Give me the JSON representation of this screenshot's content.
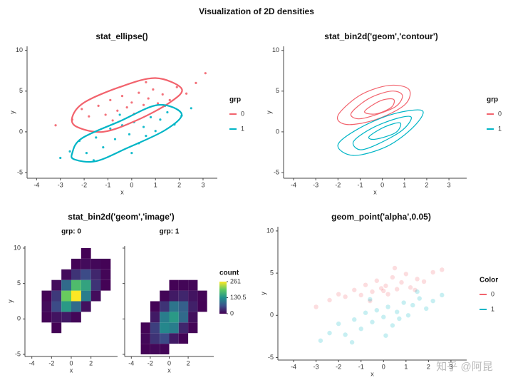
{
  "title": "Visualization of 2D densities",
  "watermark": "知乎 @阿昆",
  "chart_data": [
    {
      "type": "scatter",
      "title": "stat_ellipse()",
      "xlabel": "x",
      "ylabel": "y",
      "xlim": [
        -4.4,
        3.6
      ],
      "ylim": [
        -5.7,
        10.5
      ],
      "xticks": [
        -4,
        -3,
        -2,
        -1,
        0,
        1,
        2,
        3
      ],
      "yticks": [
        -5,
        0,
        5,
        10
      ],
      "legend_title": "grp",
      "series": [
        {
          "name": "0",
          "color": "#f2636d",
          "x": [
            -3.2,
            -2.5,
            -2.1,
            -1.8,
            -1.4,
            -1.1,
            -0.9,
            -0.6,
            -0.4,
            -0.2,
            0,
            0.1,
            0.3,
            0.5,
            0.7,
            0.9,
            1.1,
            1.3,
            1.6,
            1.9,
            2.3,
            2.7,
            3.1,
            -0.8,
            0.6
          ],
          "y": [
            0.8,
            1.5,
            2.8,
            1.9,
            3.2,
            2.1,
            3.9,
            2.6,
            4.4,
            3.0,
            3.6,
            2.2,
            4.8,
            3.3,
            4.1,
            5.2,
            3.5,
            4.6,
            3.9,
            5.5,
            4.7,
            6.0,
            7.2,
            1.4,
            6.1
          ],
          "ellipse": {
            "x": [
              -2.5,
              -2.0,
              -0.5,
              1.0,
              2.1,
              1.6,
              0.2,
              -1.2,
              -2.3
            ],
            "y": [
              1.8,
              3.6,
              5.5,
              6.6,
              5.3,
              3.6,
              1.4,
              0.0,
              0.6
            ]
          }
        },
        {
          "name": "1",
          "color": "#00b5c6",
          "x": [
            -3.0,
            -2.6,
            -2.2,
            -1.9,
            -1.5,
            -1.2,
            -0.9,
            -0.7,
            -0.4,
            -0.1,
            0.1,
            0.3,
            0.5,
            0.8,
            1.0,
            1.2,
            1.5,
            1.8,
            2.1,
            2.5,
            -1.6,
            0.0,
            0.6,
            -0.5,
            1.4
          ],
          "y": [
            -3.2,
            -2.4,
            -1.1,
            -2.6,
            -0.7,
            -1.9,
            0.4,
            -0.9,
            0.8,
            -0.3,
            1.2,
            -1.4,
            0.6,
            1.8,
            0.1,
            1.5,
            2.4,
            0.9,
            2.0,
            2.9,
            -3.5,
            -2.6,
            -0.5,
            2.1,
            3.2
          ],
          "ellipse": {
            "x": [
              -2.5,
              -2.1,
              -0.5,
              1.1,
              2.1,
              1.4,
              -0.2,
              -1.5,
              -2.4
            ],
            "y": [
              -2.6,
              -0.8,
              1.3,
              3.3,
              2.2,
              0.2,
              -2.0,
              -3.6,
              -3.4
            ]
          }
        }
      ]
    },
    {
      "type": "contour",
      "title": "stat_bin2d('geom','contour')",
      "xlabel": "x",
      "ylabel": "y",
      "xlim": [
        -4.45,
        3.8
      ],
      "ylim": [
        -5.7,
        10.5
      ],
      "xticks": [
        -4,
        -3,
        -2,
        -1,
        0,
        1,
        2,
        3
      ],
      "yticks": [
        -5,
        0,
        5,
        10
      ],
      "legend_title": "grp",
      "series": [
        {
          "name": "0",
          "color": "#f2636d",
          "contours": [
            {
              "x": [
                -2.0,
                -1.0,
                0.3,
                1.2,
                1.0,
                -0.3,
                -1.6
              ],
              "y": [
                2.0,
                4.5,
                5.7,
                5.2,
                3.3,
                1.5,
                0.9
              ]
            },
            {
              "x": [
                -1.4,
                -0.6,
                0.4,
                0.9,
                0.6,
                -0.4,
                -1.1
              ],
              "y": [
                2.3,
                4.1,
                5.0,
                4.5,
                3.1,
                2.0,
                1.6
              ]
            },
            {
              "x": [
                -0.8,
                -0.1,
                0.5,
                0.4,
                -0.3
              ],
              "y": [
                2.5,
                3.8,
                4.0,
                3.0,
                2.2
              ]
            }
          ]
        },
        {
          "name": "1",
          "color": "#00b5c6",
          "contours": [
            {
              "x": [
                -2.0,
                -1.0,
                0.5,
                1.8,
                1.4,
                0.2,
                -1.3
              ],
              "y": [
                -1.6,
                0.5,
                2.2,
                2.6,
                0.6,
                -1.8,
                -2.9
              ]
            },
            {
              "x": [
                -1.3,
                -0.5,
                0.6,
                1.3,
                0.9,
                -0.2,
                -1.0
              ],
              "y": [
                -1.2,
                0.4,
                1.6,
                1.8,
                0.2,
                -1.5,
                -2.2
              ]
            },
            {
              "x": [
                -0.6,
                0.1,
                0.8,
                0.6,
                -0.3
              ],
              "y": [
                -0.6,
                0.6,
                1.1,
                -0.1,
                -0.9
              ]
            }
          ]
        }
      ]
    },
    {
      "type": "heatmap",
      "title": "stat_bin2d('geom','image')",
      "xlabel": "x",
      "ylabel": "y",
      "xlim": [
        -4.7,
        4.7
      ],
      "ylim": [
        -5.3,
        10.3
      ],
      "xticks": [
        -4,
        -2,
        0,
        2
      ],
      "yticks": [
        -5,
        0,
        5,
        10
      ],
      "xbins": [
        -3,
        -2,
        -1,
        0,
        1,
        2,
        3,
        4
      ],
      "ybins": [
        -5,
        -3.5,
        -2,
        -0.5,
        1,
        2.5,
        4,
        5.5,
        7,
        8.5,
        10
      ],
      "colorbar": {
        "title": "count",
        "lim": [
          0,
          261
        ],
        "ticks": [
          0,
          130.5,
          261
        ]
      },
      "facets": [
        {
          "title": "grp: 0",
          "counts": [
            [
              null,
              null,
              null,
              null,
              null,
              null,
              null
            ],
            [
              null,
              null,
              null,
              null,
              null,
              null,
              null
            ],
            [
              null,
              2,
              null,
              null,
              null,
              null,
              null
            ],
            [
              3,
              15,
              20,
              5,
              null,
              null,
              null
            ],
            [
              8,
              60,
              140,
              90,
              12,
              null,
              null
            ],
            [
              2,
              45,
              200,
              261,
              110,
              10,
              null
            ],
            [
              null,
              10,
              90,
              180,
              150,
              40,
              2
            ],
            [
              null,
              null,
              8,
              40,
              60,
              30,
              4
            ],
            [
              null,
              null,
              null,
              3,
              8,
              6,
              2
            ],
            [
              null,
              null,
              null,
              null,
              1,
              null,
              null
            ]
          ]
        },
        {
          "title": "grp: 1",
          "counts": [
            [
              2,
              6,
              4,
              null,
              null,
              null,
              null
            ],
            [
              6,
              40,
              60,
              20,
              2,
              null,
              null
            ],
            [
              3,
              50,
              120,
              110,
              30,
              3,
              null
            ],
            [
              null,
              20,
              110,
              140,
              90,
              12,
              null
            ],
            [
              null,
              3,
              40,
              100,
              80,
              25,
              2
            ],
            [
              null,
              null,
              4,
              20,
              30,
              15,
              3
            ],
            [
              null,
              null,
              null,
              2,
              4,
              5,
              null
            ],
            [
              null,
              null,
              null,
              null,
              null,
              null,
              null
            ],
            [
              null,
              null,
              null,
              null,
              null,
              null,
              null
            ],
            [
              null,
              null,
              null,
              null,
              null,
              null,
              null
            ]
          ]
        }
      ]
    },
    {
      "type": "scatter",
      "title": "geom_point('alpha',0.05)",
      "xlabel": "x",
      "ylabel": "y",
      "xlim": [
        -4.7,
        3.7
      ],
      "ylim": [
        -5.3,
        10.5
      ],
      "xticks": [
        -4,
        -3,
        -2,
        -1,
        0,
        1,
        2,
        3
      ],
      "yticks": [
        -5,
        0,
        5,
        10
      ],
      "legend_title": "Color",
      "series": [
        {
          "name": "0",
          "color": "#f2636d",
          "x": [
            -3.0,
            -2.4,
            -2.0,
            -1.7,
            -1.3,
            -1.0,
            -0.8,
            -0.5,
            -0.3,
            -0.1,
            0.1,
            0.2,
            0.4,
            0.6,
            0.8,
            1.0,
            1.2,
            1.5,
            1.8,
            2.2,
            2.6,
            -0.6,
            0.5,
            0.0,
            1.4
          ],
          "y": [
            1.0,
            1.8,
            2.5,
            2.2,
            3.0,
            2.4,
            3.6,
            2.8,
            4.1,
            3.2,
            3.5,
            2.5,
            4.5,
            3.1,
            3.9,
            4.9,
            3.3,
            4.3,
            4.0,
            5.1,
            5.4,
            1.7,
            5.6,
            2.9,
            3.0
          ],
          "ellipse": null
        },
        {
          "name": "1",
          "color": "#00b5c6",
          "x": [
            -2.8,
            -2.4,
            -2.0,
            -1.7,
            -1.3,
            -1.0,
            -0.8,
            -0.5,
            -0.3,
            0.0,
            0.2,
            0.4,
            0.6,
            0.9,
            1.1,
            1.3,
            1.6,
            1.9,
            2.2,
            -1.4,
            0.1,
            0.7,
            -0.6,
            1.5,
            2.6
          ],
          "y": [
            -3.0,
            -2.1,
            -1.0,
            -2.3,
            -0.5,
            -1.6,
            0.3,
            -0.8,
            0.6,
            -0.2,
            1.0,
            -1.2,
            0.4,
            1.5,
            0.0,
            1.2,
            2.0,
            0.8,
            1.7,
            -3.2,
            -2.4,
            -0.4,
            1.9,
            2.8,
            2.4
          ],
          "ellipse": null
        }
      ]
    }
  ]
}
